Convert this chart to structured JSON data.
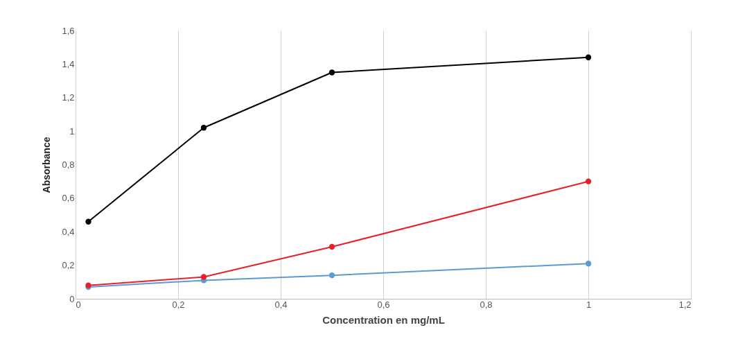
{
  "chart_data": {
    "type": "line",
    "xlabel": "Concentration en mg/mL",
    "ylabel": "Absorbance",
    "x": [
      0.025,
      0.25,
      0.5,
      1
    ],
    "series": [
      {
        "color": "#000000",
        "values": [
          0.46,
          1.02,
          1.35,
          1.44
        ]
      },
      {
        "color": "#e8202a",
        "values": [
          0.08,
          0.13,
          0.31,
          0.7
        ]
      },
      {
        "color": "#5b9bd5",
        "values": [
          0.07,
          0.11,
          0.14,
          0.21
        ]
      }
    ],
    "xlim": [
      0,
      1.2
    ],
    "xticks": [
      0,
      {
        "value": 0.2,
        "label": "0,2"
      },
      {
        "value": 0.4,
        "label": "0,4"
      },
      {
        "value": 0.6,
        "label": "0,6"
      },
      {
        "value": 0.8,
        "label": "0,8"
      },
      1,
      {
        "value": 1.2,
        "label": "1,2"
      }
    ],
    "ylim": [
      0,
      1.6
    ],
    "yticks": [
      0,
      {
        "value": 0.2,
        "label": "0,2"
      },
      {
        "value": 0.4,
        "label": "0,4"
      },
      {
        "value": 0.6,
        "label": "0,6"
      },
      {
        "value": 0.8,
        "label": "0,8"
      },
      1,
      {
        "value": 1.2,
        "label": "1,2"
      },
      {
        "value": 1.4,
        "label": "1,4"
      },
      {
        "value": 1.6,
        "label": "1,6"
      }
    ],
    "grid": "x",
    "legend": false,
    "marker": "circle",
    "line_style": "solid"
  }
}
